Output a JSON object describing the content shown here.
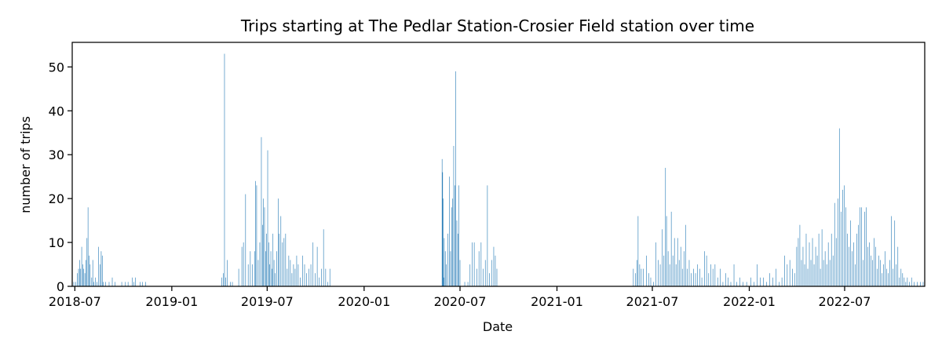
{
  "chart_data": {
    "type": "bar",
    "title": "Trips starting at The Pedlar Station-Crosier Field station over time",
    "xlabel": "Date",
    "ylabel": "number of trips",
    "x_axis": "date",
    "xlim": [
      "2018-06-26",
      "2022-11-30"
    ],
    "ylim": [
      0,
      55.6
    ],
    "grid": false,
    "color": "#1f77b4",
    "x_ticks": [
      "2018-07",
      "2019-01",
      "2019-07",
      "2020-01",
      "2020-07",
      "2021-01",
      "2021-07",
      "2022-01",
      "2022-07"
    ],
    "y_ticks": [
      0,
      10,
      20,
      30,
      40,
      50
    ],
    "data": [
      [
        "2018-06-29",
        1
      ],
      [
        "2018-07-03",
        1
      ],
      [
        "2018-07-06",
        3
      ],
      [
        "2018-07-08",
        4
      ],
      [
        "2018-07-10",
        6
      ],
      [
        "2018-07-12",
        4
      ],
      [
        "2018-07-14",
        9
      ],
      [
        "2018-07-16",
        5
      ],
      [
        "2018-07-18",
        4
      ],
      [
        "2018-07-20",
        3
      ],
      [
        "2018-07-22",
        6
      ],
      [
        "2018-07-24",
        11
      ],
      [
        "2018-07-26",
        18
      ],
      [
        "2018-07-28",
        7
      ],
      [
        "2018-07-30",
        5
      ],
      [
        "2018-08-02",
        2
      ],
      [
        "2018-08-04",
        6
      ],
      [
        "2018-08-06",
        1
      ],
      [
        "2018-08-09",
        2
      ],
      [
        "2018-08-12",
        1
      ],
      [
        "2018-08-15",
        9
      ],
      [
        "2018-08-18",
        5
      ],
      [
        "2018-08-20",
        8
      ],
      [
        "2018-08-22",
        7
      ],
      [
        "2018-08-24",
        1
      ],
      [
        "2018-08-28",
        1
      ],
      [
        "2018-09-04",
        1
      ],
      [
        "2018-09-10",
        2
      ],
      [
        "2018-09-15",
        1
      ],
      [
        "2018-09-28",
        1
      ],
      [
        "2018-10-05",
        1
      ],
      [
        "2018-10-10",
        1
      ],
      [
        "2018-10-18",
        2
      ],
      [
        "2018-10-21",
        1
      ],
      [
        "2018-10-24",
        2
      ],
      [
        "2018-11-02",
        1
      ],
      [
        "2018-11-06",
        1
      ],
      [
        "2018-11-12",
        1
      ],
      [
        "2019-04-06",
        2
      ],
      [
        "2019-04-09",
        3
      ],
      [
        "2019-04-11",
        53
      ],
      [
        "2019-04-13",
        2
      ],
      [
        "2019-04-16",
        6
      ],
      [
        "2019-04-22",
        1
      ],
      [
        "2019-04-26",
        1
      ],
      [
        "2019-05-08",
        4
      ],
      [
        "2019-05-14",
        9
      ],
      [
        "2019-05-17",
        10
      ],
      [
        "2019-05-21",
        21
      ],
      [
        "2019-05-26",
        5
      ],
      [
        "2019-05-30",
        8
      ],
      [
        "2019-06-03",
        5
      ],
      [
        "2019-06-07",
        8
      ],
      [
        "2019-06-09",
        24
      ],
      [
        "2019-06-11",
        23
      ],
      [
        "2019-06-14",
        6
      ],
      [
        "2019-06-17",
        10
      ],
      [
        "2019-06-20",
        34
      ],
      [
        "2019-06-22",
        14
      ],
      [
        "2019-06-24",
        20
      ],
      [
        "2019-06-26",
        18
      ],
      [
        "2019-06-28",
        8
      ],
      [
        "2019-06-30",
        12
      ],
      [
        "2019-07-02",
        31
      ],
      [
        "2019-07-04",
        10
      ],
      [
        "2019-07-06",
        5
      ],
      [
        "2019-07-08",
        8
      ],
      [
        "2019-07-10",
        4
      ],
      [
        "2019-07-12",
        12
      ],
      [
        "2019-07-14",
        6
      ],
      [
        "2019-07-16",
        3
      ],
      [
        "2019-07-19",
        8
      ],
      [
        "2019-07-22",
        20
      ],
      [
        "2019-07-24",
        12
      ],
      [
        "2019-07-27",
        16
      ],
      [
        "2019-07-30",
        10
      ],
      [
        "2019-08-02",
        11
      ],
      [
        "2019-08-05",
        12
      ],
      [
        "2019-08-08",
        4
      ],
      [
        "2019-08-11",
        7
      ],
      [
        "2019-08-14",
        6
      ],
      [
        "2019-08-17",
        3
      ],
      [
        "2019-08-20",
        5
      ],
      [
        "2019-08-23",
        4
      ],
      [
        "2019-08-26",
        7
      ],
      [
        "2019-08-29",
        5
      ],
      [
        "2019-09-02",
        2
      ],
      [
        "2019-09-06",
        7
      ],
      [
        "2019-09-10",
        5
      ],
      [
        "2019-09-14",
        3
      ],
      [
        "2019-09-18",
        4
      ],
      [
        "2019-09-22",
        5
      ],
      [
        "2019-09-26",
        10
      ],
      [
        "2019-09-30",
        3
      ],
      [
        "2019-10-04",
        9
      ],
      [
        "2019-10-08",
        2
      ],
      [
        "2019-10-12",
        4
      ],
      [
        "2019-10-16",
        13
      ],
      [
        "2019-10-20",
        4
      ],
      [
        "2019-10-24",
        1
      ],
      [
        "2019-10-28",
        4
      ],
      [
        "2020-05-28",
        29
      ],
      [
        "2020-05-29",
        26
      ],
      [
        "2020-05-30",
        20
      ],
      [
        "2020-05-31",
        2
      ],
      [
        "2020-06-01",
        11
      ],
      [
        "2020-06-03",
        8
      ],
      [
        "2020-06-05",
        5
      ],
      [
        "2020-06-08",
        12
      ],
      [
        "2020-06-11",
        25
      ],
      [
        "2020-06-13",
        8
      ],
      [
        "2020-06-15",
        18
      ],
      [
        "2020-06-17",
        20
      ],
      [
        "2020-06-19",
        32
      ],
      [
        "2020-06-21",
        23
      ],
      [
        "2020-06-23",
        49
      ],
      [
        "2020-06-25",
        15
      ],
      [
        "2020-06-27",
        12
      ],
      [
        "2020-06-29",
        23
      ],
      [
        "2020-07-01",
        6
      ],
      [
        "2020-07-10",
        1
      ],
      [
        "2020-07-16",
        1
      ],
      [
        "2020-07-20",
        5
      ],
      [
        "2020-07-24",
        10
      ],
      [
        "2020-07-28",
        10
      ],
      [
        "2020-08-02",
        4
      ],
      [
        "2020-08-06",
        8
      ],
      [
        "2020-08-10",
        10
      ],
      [
        "2020-08-14",
        4
      ],
      [
        "2020-08-18",
        6
      ],
      [
        "2020-08-22",
        23
      ],
      [
        "2020-08-26",
        3
      ],
      [
        "2020-08-30",
        6
      ],
      [
        "2020-09-03",
        9
      ],
      [
        "2020-09-06",
        7
      ],
      [
        "2020-09-09",
        4
      ],
      [
        "2021-05-26",
        4
      ],
      [
        "2021-05-30",
        3
      ],
      [
        "2021-06-02",
        6
      ],
      [
        "2021-06-04",
        16
      ],
      [
        "2021-06-07",
        5
      ],
      [
        "2021-06-10",
        4
      ],
      [
        "2021-06-14",
        4
      ],
      [
        "2021-06-20",
        7
      ],
      [
        "2021-06-24",
        3
      ],
      [
        "2021-06-28",
        2
      ],
      [
        "2021-07-03",
        1
      ],
      [
        "2021-07-08",
        10
      ],
      [
        "2021-07-12",
        6
      ],
      [
        "2021-07-16",
        5
      ],
      [
        "2021-07-20",
        13
      ],
      [
        "2021-07-23",
        7
      ],
      [
        "2021-07-26",
        27
      ],
      [
        "2021-07-28",
        16
      ],
      [
        "2021-07-31",
        8
      ],
      [
        "2021-08-03",
        5
      ],
      [
        "2021-08-06",
        17
      ],
      [
        "2021-08-09",
        7
      ],
      [
        "2021-08-12",
        11
      ],
      [
        "2021-08-15",
        5
      ],
      [
        "2021-08-18",
        11
      ],
      [
        "2021-08-21",
        6
      ],
      [
        "2021-08-24",
        9
      ],
      [
        "2021-08-27",
        4
      ],
      [
        "2021-08-30",
        8
      ],
      [
        "2021-09-02",
        14
      ],
      [
        "2021-09-05",
        4
      ],
      [
        "2021-09-09",
        6
      ],
      [
        "2021-09-13",
        3
      ],
      [
        "2021-09-17",
        4
      ],
      [
        "2021-09-21",
        3
      ],
      [
        "2021-09-25",
        5
      ],
      [
        "2021-09-29",
        4
      ],
      [
        "2021-10-03",
        2
      ],
      [
        "2021-10-08",
        8
      ],
      [
        "2021-10-12",
        7
      ],
      [
        "2021-10-16",
        3
      ],
      [
        "2021-10-20",
        5
      ],
      [
        "2021-10-24",
        4
      ],
      [
        "2021-10-28",
        5
      ],
      [
        "2021-11-02",
        2
      ],
      [
        "2021-11-07",
        4
      ],
      [
        "2021-11-12",
        1
      ],
      [
        "2021-11-17",
        3
      ],
      [
        "2021-11-22",
        2
      ],
      [
        "2021-11-27",
        1
      ],
      [
        "2021-12-03",
        5
      ],
      [
        "2021-12-08",
        1
      ],
      [
        "2021-12-14",
        2
      ],
      [
        "2021-12-20",
        1
      ],
      [
        "2021-12-27",
        1
      ],
      [
        "2022-01-04",
        2
      ],
      [
        "2022-01-10",
        1
      ],
      [
        "2022-01-16",
        5
      ],
      [
        "2022-01-22",
        2
      ],
      [
        "2022-01-28",
        2
      ],
      [
        "2022-02-03",
        1
      ],
      [
        "2022-02-09",
        3
      ],
      [
        "2022-02-15",
        2
      ],
      [
        "2022-02-21",
        4
      ],
      [
        "2022-02-27",
        1
      ],
      [
        "2022-03-04",
        2
      ],
      [
        "2022-03-09",
        7
      ],
      [
        "2022-03-14",
        5
      ],
      [
        "2022-03-19",
        6
      ],
      [
        "2022-03-24",
        4
      ],
      [
        "2022-03-28",
        3
      ],
      [
        "2022-04-01",
        9
      ],
      [
        "2022-04-04",
        11
      ],
      [
        "2022-04-07",
        14
      ],
      [
        "2022-04-10",
        6
      ],
      [
        "2022-04-13",
        9
      ],
      [
        "2022-04-16",
        5
      ],
      [
        "2022-04-19",
        12
      ],
      [
        "2022-04-22",
        4
      ],
      [
        "2022-04-25",
        10
      ],
      [
        "2022-04-28",
        6
      ],
      [
        "2022-05-01",
        11
      ],
      [
        "2022-05-04",
        5
      ],
      [
        "2022-05-07",
        9
      ],
      [
        "2022-05-10",
        7
      ],
      [
        "2022-05-13",
        12
      ],
      [
        "2022-05-16",
        4
      ],
      [
        "2022-05-19",
        13
      ],
      [
        "2022-05-22",
        6
      ],
      [
        "2022-05-25",
        8
      ],
      [
        "2022-05-28",
        5
      ],
      [
        "2022-05-31",
        10
      ],
      [
        "2022-06-03",
        6
      ],
      [
        "2022-06-06",
        12
      ],
      [
        "2022-06-09",
        7
      ],
      [
        "2022-06-12",
        19
      ],
      [
        "2022-06-15",
        11
      ],
      [
        "2022-06-18",
        20
      ],
      [
        "2022-06-21",
        36
      ],
      [
        "2022-06-24",
        17
      ],
      [
        "2022-06-27",
        22
      ],
      [
        "2022-06-30",
        23
      ],
      [
        "2022-07-03",
        18
      ],
      [
        "2022-07-06",
        12
      ],
      [
        "2022-07-09",
        9
      ],
      [
        "2022-07-12",
        15
      ],
      [
        "2022-07-15",
        8
      ],
      [
        "2022-07-18",
        10
      ],
      [
        "2022-07-21",
        5
      ],
      [
        "2022-07-24",
        12
      ],
      [
        "2022-07-27",
        14
      ],
      [
        "2022-07-30",
        18
      ],
      [
        "2022-08-02",
        18
      ],
      [
        "2022-08-05",
        6
      ],
      [
        "2022-08-08",
        17
      ],
      [
        "2022-08-11",
        18
      ],
      [
        "2022-08-14",
        9
      ],
      [
        "2022-08-17",
        10
      ],
      [
        "2022-08-20",
        7
      ],
      [
        "2022-08-23",
        6
      ],
      [
        "2022-08-26",
        11
      ],
      [
        "2022-08-29",
        9
      ],
      [
        "2022-09-01",
        4
      ],
      [
        "2022-09-04",
        7
      ],
      [
        "2022-09-07",
        6
      ],
      [
        "2022-09-10",
        3
      ],
      [
        "2022-09-13",
        5
      ],
      [
        "2022-09-16",
        8
      ],
      [
        "2022-09-19",
        4
      ],
      [
        "2022-09-22",
        3
      ],
      [
        "2022-09-25",
        6
      ],
      [
        "2022-09-28",
        16
      ],
      [
        "2022-10-01",
        4
      ],
      [
        "2022-10-04",
        15
      ],
      [
        "2022-10-07",
        5
      ],
      [
        "2022-10-10",
        9
      ],
      [
        "2022-10-13",
        2
      ],
      [
        "2022-10-16",
        4
      ],
      [
        "2022-10-19",
        3
      ],
      [
        "2022-10-22",
        2
      ],
      [
        "2022-10-25",
        1
      ],
      [
        "2022-10-28",
        2
      ],
      [
        "2022-11-01",
        1
      ],
      [
        "2022-11-05",
        2
      ],
      [
        "2022-11-10",
        1
      ],
      [
        "2022-11-16",
        1
      ],
      [
        "2022-11-22",
        1
      ],
      [
        "2022-11-27",
        1
      ]
    ]
  }
}
